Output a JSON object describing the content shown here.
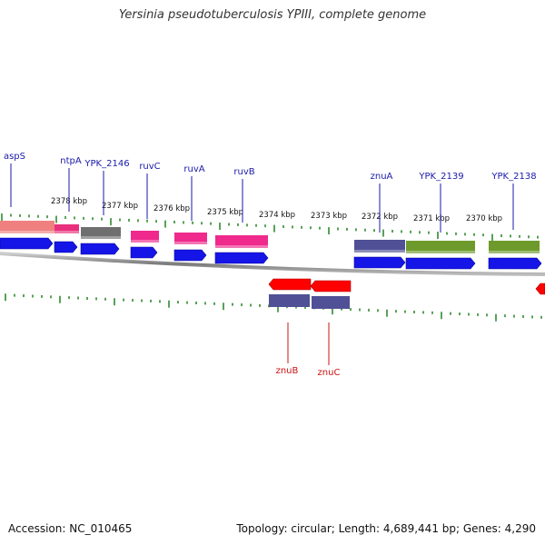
{
  "title": "Yersinia pseudotuberculosis YPIII, complete genome",
  "footer": {
    "accession": "Accession: NC_010465",
    "stats": "Topology: circular; Length: 4,689,441 bp; Genes: 4,290"
  },
  "colors": {
    "backbone": "#8a8a8a",
    "tick": "#2e8b2e",
    "forward_label": "#1a1aaa",
    "reverse_label": "#cc1111",
    "cds": "#1515e8"
  },
  "scale_labels": [
    "2378 kbp",
    "2377 kbp",
    "2376 kbp",
    "2375 kbp",
    "2374 kbp",
    "2373 kbp",
    "2372 kbp",
    "2371 kbp",
    "2370 kbp"
  ],
  "genes": {
    "forward": [
      {
        "label": "aspS",
        "color": "#f08080"
      },
      {
        "label": "ntpA",
        "color": "#e8307c"
      },
      {
        "label": "YPK_2146",
        "color": "#6f6f6f"
      },
      {
        "label": "ruvC",
        "color": "#ef2a8c"
      },
      {
        "label": "ruvA",
        "color": "#ef2a8c"
      },
      {
        "label": "ruvB",
        "color": "#ef2a8c"
      },
      {
        "label": "znuA",
        "color": "#505096"
      },
      {
        "label": "YPK_2139",
        "color": "#6e9a2c"
      },
      {
        "label": "YPK_2138",
        "color": "#6e9a2c"
      }
    ],
    "reverse": [
      {
        "label": "znuB",
        "color": "#505096"
      },
      {
        "label": "znuC",
        "color": "#505096"
      }
    ]
  }
}
